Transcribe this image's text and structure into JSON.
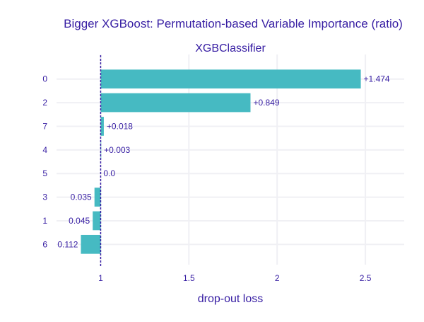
{
  "chart_data": {
    "type": "bar",
    "orientation": "horizontal",
    "title": "Bigger XGBoost: Permutation-based Variable Importance (ratio)",
    "subtitle": "XGBClassifier",
    "xlabel": "drop-out loss",
    "ylabel": "",
    "baseline": 1,
    "xlim": [
      0.75,
      2.72
    ],
    "xticks": [
      1,
      1.5,
      2,
      2.5
    ],
    "xtick_labels": [
      "1",
      "1.5",
      "2",
      "2.5"
    ],
    "categories": [
      "0",
      "2",
      "7",
      "4",
      "5",
      "3",
      "1",
      "6"
    ],
    "values": [
      2.474,
      1.849,
      1.018,
      1.003,
      1.0,
      0.965,
      0.955,
      0.888
    ],
    "labels": [
      "+1.474",
      "+0.849",
      "+0.018",
      "+0.003",
      "0.0",
      "0.035",
      "0.045",
      "0.112"
    ],
    "grid": true,
    "legend": "none",
    "colors": {
      "bar": "#46bac2",
      "baseline": "#371ea3",
      "text": "#371ea3",
      "grid": "#f0f0f4"
    }
  }
}
